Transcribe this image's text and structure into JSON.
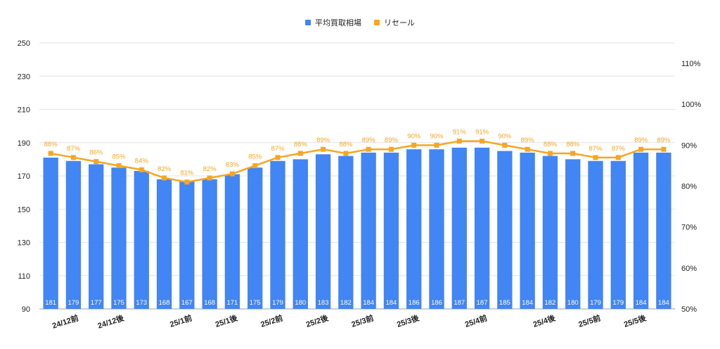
{
  "chart_data": {
    "type": "bar",
    "title": "",
    "xlabel": "",
    "ylabel": "",
    "ylim": [
      90,
      250
    ],
    "y2lim": [
      50,
      115
    ],
    "y_ticks": [
      "90",
      "110",
      "130",
      "150",
      "170",
      "190",
      "210",
      "230",
      "250"
    ],
    "y2_ticks": [
      "50%",
      "60%",
      "70%",
      "80%",
      "90%",
      "100%",
      "110%"
    ],
    "grid": true,
    "legend_position": "top",
    "categories": [
      "",
      "24/12前",
      "",
      "24/12後",
      "",
      "",
      "25/1前",
      "",
      "25/1後",
      "",
      "25/2前",
      "",
      "25/2後",
      "",
      "25/3前",
      "",
      "25/3後",
      "",
      "",
      "25/4前",
      "",
      "",
      "25/4後",
      "",
      "25/5前",
      "",
      "25/5後",
      ""
    ],
    "series": [
      {
        "name": "平均買取相場",
        "kind": "bar",
        "axis": "left",
        "color": "#4285F4",
        "values": [
          181,
          179,
          177,
          175,
          173,
          168,
          167,
          168,
          171,
          175,
          179,
          180,
          183,
          182,
          184,
          184,
          186,
          186,
          187,
          187,
          185,
          184,
          182,
          180,
          179,
          179,
          184,
          184
        ],
        "labels": [
          "181",
          "179",
          "177",
          "175",
          "173",
          "168",
          "167",
          "168",
          "171",
          "175",
          "179",
          "180",
          "183",
          "182",
          "184",
          "184",
          "186",
          "186",
          "187",
          "187",
          "185",
          "184",
          "182",
          "180",
          "179",
          "179",
          "184",
          "184"
        ]
      },
      {
        "name": "リセール",
        "kind": "line",
        "axis": "right",
        "color": "#F5A623",
        "values": [
          88,
          87,
          86,
          85,
          84,
          82,
          81,
          82,
          83,
          85,
          87,
          88,
          89,
          88,
          89,
          89,
          90,
          90,
          91,
          91,
          90,
          89,
          88,
          88,
          87,
          87,
          89,
          89
        ],
        "labels": [
          "88%",
          "87%",
          "86%",
          "85%",
          "84%",
          "82%",
          "81%",
          "82%",
          "83%",
          "85%",
          "87%",
          "88%",
          "89%",
          "88%",
          "89%",
          "89%",
          "90%",
          "90%",
          "91%",
          "91%",
          "90%",
          "89%",
          "88%",
          "88%",
          "87%",
          "87%",
          "89%",
          "89%"
        ]
      }
    ]
  }
}
